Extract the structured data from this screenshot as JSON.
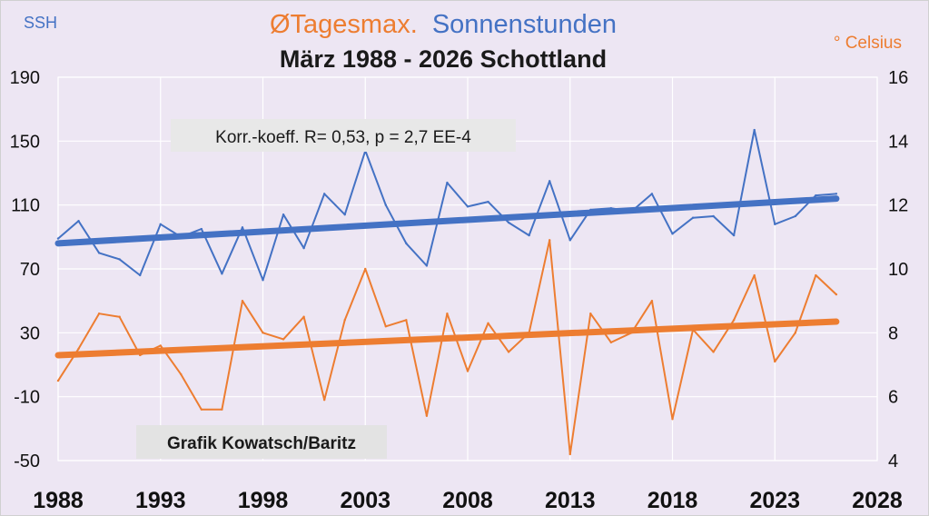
{
  "chart_data": {
    "type": "line",
    "title_part1": "ØTagesmax.",
    "title_part2": "Sonnenstunden",
    "title_line2": "März 1988 - 2026 Schottland",
    "left_axis_unit": "SSH",
    "right_axis_unit": "° Celsius",
    "annotation": "Korr.-koeff. R= 0,53, p = 2,7 EE-4",
    "credit": "Grafik Kowatsch/Baritz",
    "grid": true,
    "xlim": [
      1988,
      2028
    ],
    "x_ticks": [
      1988,
      1993,
      1998,
      2003,
      2008,
      2013,
      2018,
      2023,
      2028
    ],
    "y_left_lim": [
      -50,
      190
    ],
    "y_left_ticks": [
      -50,
      -10,
      30,
      70,
      110,
      150,
      190
    ],
    "y_right_lim": [
      4,
      16
    ],
    "y_right_ticks": [
      4,
      6,
      8,
      10,
      12,
      14,
      16
    ],
    "colors": {
      "sun": "#4472c4",
      "temp": "#ed7d31",
      "background": "#ede6f3",
      "grid": "#ffffff"
    },
    "series": [
      {
        "name": "Sonnenstunden",
        "axis": "left",
        "x": [
          1988,
          1989,
          1990,
          1991,
          1992,
          1993,
          1994,
          1995,
          1996,
          1997,
          1998,
          1999,
          2000,
          2001,
          2002,
          2003,
          2004,
          2005,
          2006,
          2007,
          2008,
          2009,
          2010,
          2011,
          2012,
          2013,
          2014,
          2015,
          2016,
          2017,
          2018,
          2019,
          2020,
          2021,
          2022,
          2023,
          2024,
          2025,
          2026
        ],
        "y": [
          89,
          100,
          80,
          76,
          66,
          98,
          90,
          95,
          67,
          96,
          63,
          104,
          83,
          117,
          104,
          144,
          110,
          86,
          72,
          124,
          109,
          112,
          99,
          91,
          125,
          88,
          107,
          108,
          106,
          117,
          92,
          102,
          103,
          91,
          157,
          98,
          103,
          116,
          117
        ]
      },
      {
        "name": "ØTagesmax.",
        "axis": "right",
        "x": [
          1988,
          1989,
          1990,
          1991,
          1992,
          1993,
          1994,
          1995,
          1996,
          1997,
          1998,
          1999,
          2000,
          2001,
          2002,
          2003,
          2004,
          2005,
          2006,
          2007,
          2008,
          2009,
          2010,
          2011,
          2012,
          2013,
          2014,
          2015,
          2016,
          2017,
          2018,
          2019,
          2020,
          2021,
          2022,
          2023,
          2024,
          2025,
          2026
        ],
        "y": [
          6.5,
          7.5,
          8.6,
          8.5,
          7.3,
          7.6,
          6.7,
          5.6,
          5.6,
          9.0,
          8.0,
          7.8,
          8.5,
          5.9,
          8.4,
          10.0,
          8.2,
          8.4,
          5.4,
          8.6,
          6.8,
          8.3,
          7.4,
          8.0,
          10.9,
          4.2,
          8.6,
          7.7,
          8.0,
          9.0,
          5.3,
          8.1,
          7.4,
          8.4,
          9.8,
          7.1,
          8.0,
          9.8,
          9.2
        ]
      }
    ],
    "trendlines": [
      {
        "series": "Sonnenstunden",
        "axis": "left",
        "x": [
          1988,
          2026
        ],
        "y": [
          86,
          114
        ]
      },
      {
        "series": "ØTagesmax.",
        "axis": "right",
        "x": [
          1988,
          2026
        ],
        "y": [
          7.3,
          8.35
        ]
      }
    ]
  }
}
